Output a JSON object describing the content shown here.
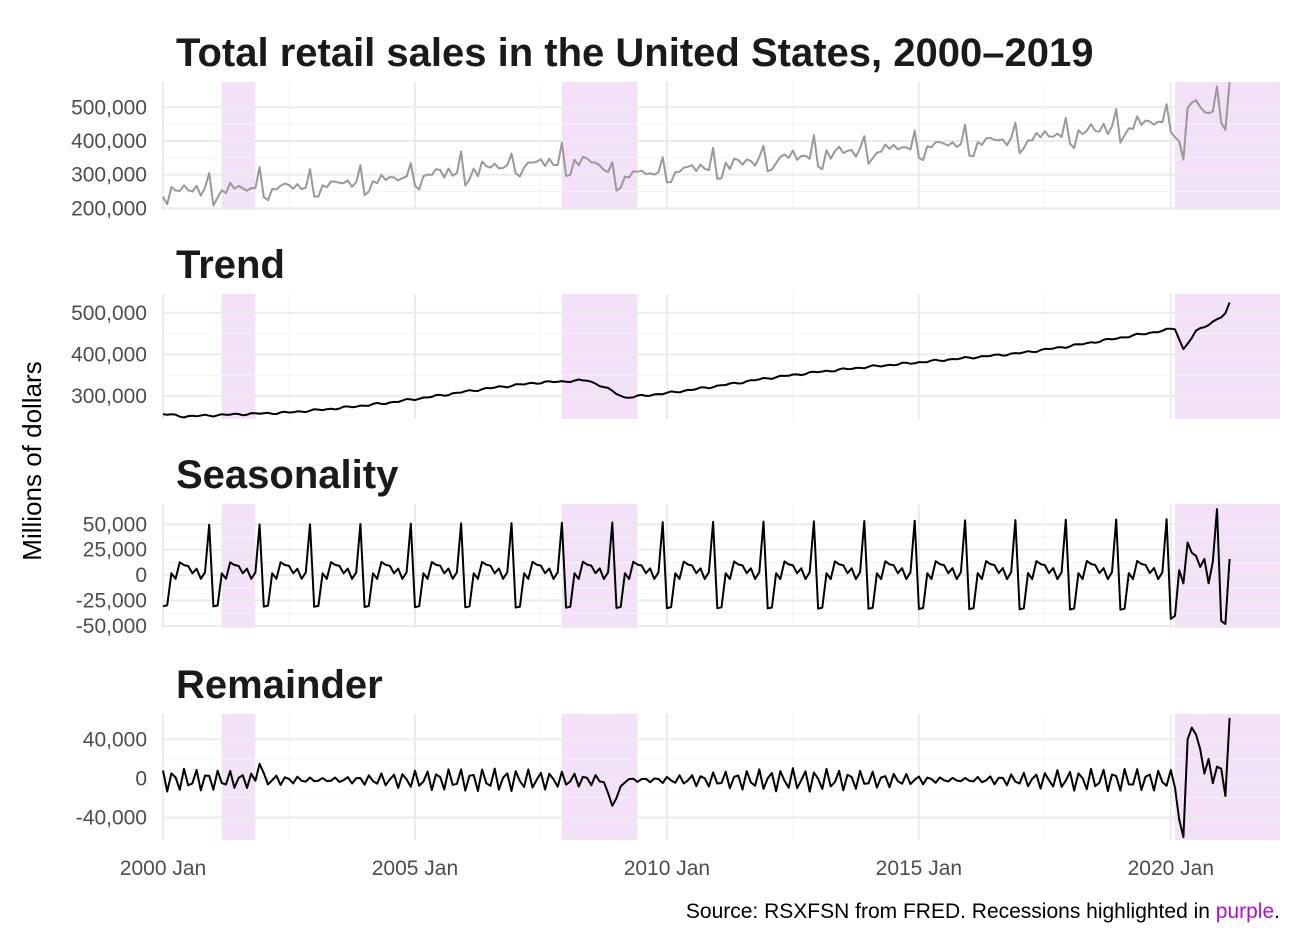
{
  "chart_data": {
    "type": "line",
    "title": "Total retail sales in the United States, 2000–2019",
    "ylabel": "Millions of dollars",
    "caption": {
      "prefix": "Source: RSXFSN from FRED. Recessions highlighted in ",
      "highlight": "purple",
      "suffix": "."
    },
    "x_ticks": [
      "2000 Jan",
      "2005 Jan",
      "2010 Jan",
      "2015 Jan",
      "2020 Jan"
    ],
    "x_range": [
      "2000-01",
      "2022-03"
    ],
    "recessions": [
      {
        "start": "2001-03",
        "end": "2001-11"
      },
      {
        "start": "2007-12",
        "end": "2009-06"
      },
      {
        "start": "2020-02",
        "end": "2022-03"
      }
    ],
    "colors": {
      "recession_fill": "#f3e1f7",
      "caption_highlight": "#b30fcf",
      "observed_line": "#999999",
      "component_line": "#000000",
      "grid_major": "#ebebeb",
      "grid_minor": "#f4f4f4"
    },
    "series_start": "2000-01",
    "seasonal_profile_2000_2019": [
      -34000,
      -33000,
      2000,
      -4000,
      14000,
      11000,
      10000,
      2000,
      7000,
      -4000,
      3000,
      55000
    ],
    "seasonal_profile_2020": [
      -43000,
      -40000,
      5000,
      -8000,
      32000,
      22000,
      19000,
      8000,
      16000,
      -8000,
      13000,
      65000
    ],
    "seasonal_profile_2021": [
      -45000,
      -48000,
      16000
    ],
    "trend_knots": [
      [
        "2000-01",
        257000
      ],
      [
        "2000-06",
        251000
      ],
      [
        "2001-06",
        256000
      ],
      [
        "2002-06",
        260000
      ],
      [
        "2003-06",
        270000
      ],
      [
        "2004-06",
        283000
      ],
      [
        "2005-06",
        300000
      ],
      [
        "2006-06",
        318000
      ],
      [
        "2007-06",
        332000
      ],
      [
        "2008-06",
        338000
      ],
      [
        "2008-10",
        322000
      ],
      [
        "2009-03",
        296000
      ],
      [
        "2010-01",
        307000
      ],
      [
        "2011-01",
        324000
      ],
      [
        "2012-01",
        343000
      ],
      [
        "2013-01",
        358000
      ],
      [
        "2014-01",
        370000
      ],
      [
        "2015-01",
        381000
      ],
      [
        "2016-01",
        392000
      ],
      [
        "2017-01",
        403000
      ],
      [
        "2018-01",
        420000
      ],
      [
        "2019-01",
        440000
      ],
      [
        "2020-02",
        462000
      ],
      [
        "2020-04",
        412000
      ],
      [
        "2020-07",
        455000
      ],
      [
        "2021-01",
        490000
      ],
      [
        "2021-02",
        498000
      ],
      [
        "2021-03",
        522000
      ]
    ],
    "remainder_overrides": [
      [
        "2008-12",
        -28000
      ],
      [
        "2008-11",
        -15000
      ],
      [
        "2009-01",
        -20000
      ],
      [
        "2009-02",
        -8000
      ],
      [
        "2001-12",
        15000
      ],
      [
        "2020-03",
        -42000
      ],
      [
        "2020-04",
        -60000
      ],
      [
        "2020-05",
        40000
      ],
      [
        "2020-06",
        52000
      ],
      [
        "2020-07",
        45000
      ],
      [
        "2020-08",
        30000
      ],
      [
        "2020-09",
        5000
      ],
      [
        "2020-10",
        20000
      ],
      [
        "2020-11",
        -5000
      ],
      [
        "2020-12",
        12000
      ],
      [
        "2021-01",
        10000
      ],
      [
        "2021-02",
        -18000
      ],
      [
        "2021-03",
        62000
      ]
    ],
    "panels": [
      {
        "key": "data",
        "title": "Total retail sales in the United States, 2000–2019",
        "ylim": [
          195000,
          575000
        ],
        "y_ticks": [
          {
            "v": 200000,
            "label": "200,000"
          },
          {
            "v": 300000,
            "label": "300,000"
          },
          {
            "v": 400000,
            "label": "400,000"
          },
          {
            "v": 500000,
            "label": "500,000"
          }
        ]
      },
      {
        "key": "trend",
        "title": "Trend",
        "ylim": [
          245000,
          545000
        ],
        "y_ticks": [
          {
            "v": 300000,
            "label": "300,000"
          },
          {
            "v": 400000,
            "label": "400,000"
          },
          {
            "v": 500000,
            "label": "500,000"
          }
        ]
      },
      {
        "key": "seasonality",
        "title": "Seasonality",
        "ylim": [
          -52000,
          70000
        ],
        "y_ticks": [
          {
            "v": -50000,
            "label": "-50,000"
          },
          {
            "v": -25000,
            "label": "-25,000"
          },
          {
            "v": 0,
            "label": "0"
          },
          {
            "v": 25000,
            "label": "25,000"
          },
          {
            "v": 50000,
            "label": "50,000"
          }
        ]
      },
      {
        "key": "remainder",
        "title": "Remainder",
        "ylim": [
          -63000,
          66000
        ],
        "y_ticks": [
          {
            "v": -40000,
            "label": "-40,000"
          },
          {
            "v": 0,
            "label": "0"
          },
          {
            "v": 40000,
            "label": "40,000"
          }
        ]
      }
    ]
  }
}
